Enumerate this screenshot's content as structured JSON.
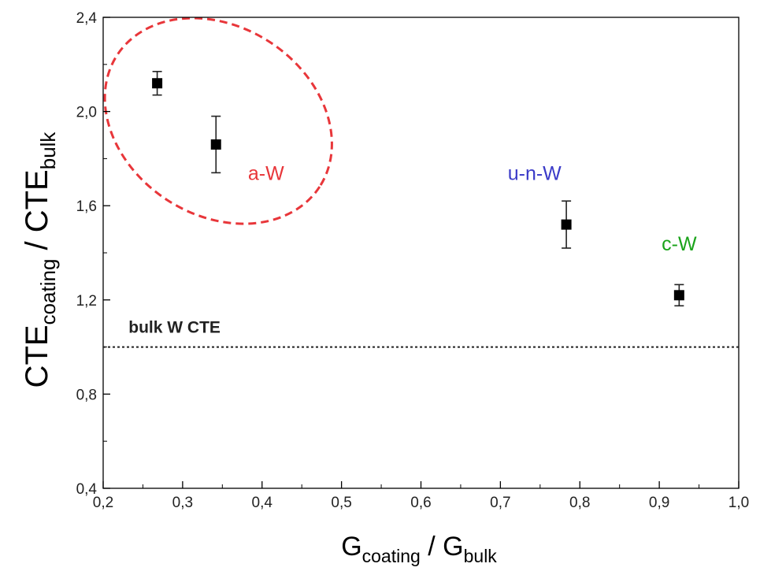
{
  "chart_data": {
    "type": "scatter",
    "xlabel": {
      "main": "G",
      "sub1": "coating",
      "mid": " / G",
      "sub2": "bulk"
    },
    "ylabel": {
      "main": "CTE",
      "sub1": "coating",
      "mid": " / CTE",
      "sub2": "bulk"
    },
    "xlim": [
      0.2,
      1.0
    ],
    "ylim": [
      0.4,
      2.4
    ],
    "xticks": [
      {
        "value": 0.2,
        "label": "0,2"
      },
      {
        "value": 0.3,
        "label": "0,3"
      },
      {
        "value": 0.4,
        "label": "0,4"
      },
      {
        "value": 0.5,
        "label": "0,5"
      },
      {
        "value": 0.6,
        "label": "0,6"
      },
      {
        "value": 0.7,
        "label": "0,7"
      },
      {
        "value": 0.8,
        "label": "0,8"
      },
      {
        "value": 0.9,
        "label": "0,9"
      },
      {
        "value": 1.0,
        "label": "1,0"
      }
    ],
    "yticks": [
      {
        "value": 0.4,
        "label": "0,4"
      },
      {
        "value": 0.8,
        "label": "0,8"
      },
      {
        "value": 1.2,
        "label": "1,2"
      },
      {
        "value": 1.6,
        "label": "1,6"
      },
      {
        "value": 2.0,
        "label": "2,0"
      },
      {
        "value": 2.4,
        "label": "2,4"
      }
    ],
    "grid": false,
    "points": [
      {
        "x": 0.268,
        "y": 2.12,
        "err": 0.05
      },
      {
        "x": 0.342,
        "y": 1.86,
        "err": 0.12
      },
      {
        "x": 0.783,
        "y": 1.52,
        "err": 0.1
      },
      {
        "x": 0.925,
        "y": 1.22,
        "err": 0.045
      }
    ],
    "reference_line": {
      "y": 1.0,
      "label": "bulk W CTE",
      "style": "dotted"
    },
    "annotations": [
      {
        "text": "a-W",
        "x": 0.405,
        "y": 1.71,
        "color": "#e8363a"
      },
      {
        "text": "u-n-W",
        "x": 0.743,
        "y": 1.71,
        "color": "#3b3bc8"
      },
      {
        "text": "c-W",
        "x": 0.925,
        "y": 1.41,
        "color": "#1aa31a"
      }
    ],
    "highlight_ellipse": {
      "cx": 0.345,
      "cy": 1.96,
      "rx": 0.152,
      "ry": 0.4,
      "color": "#e8363a"
    }
  }
}
